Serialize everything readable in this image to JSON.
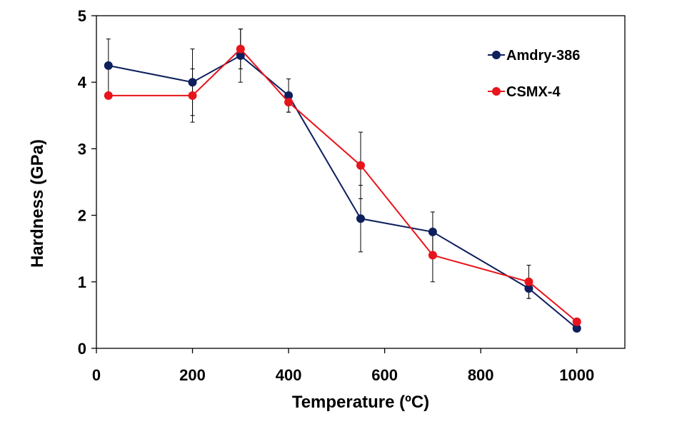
{
  "chart_data": {
    "type": "line",
    "xlabel": "Temperature (ºC)",
    "ylabel": "Hardness (GPa)",
    "xlim": [
      0,
      1100
    ],
    "ylim": [
      0,
      5
    ],
    "xticks": [
      0,
      200,
      400,
      600,
      800,
      1000
    ],
    "yticks": [
      0,
      1,
      2,
      3,
      4,
      5
    ],
    "grid": false,
    "legend_position": "top-right",
    "series": [
      {
        "name": "Amdry-386",
        "color": "#0d1f5c",
        "x": [
          25,
          200,
          300,
          400,
          550,
          700,
          900,
          1000
        ],
        "y": [
          4.25,
          4.0,
          4.4,
          3.8,
          1.95,
          1.75,
          0.9,
          0.3
        ],
        "err": [
          0.4,
          0.5,
          0.4,
          0.25,
          0.5,
          0.3,
          0.15,
          0.0
        ]
      },
      {
        "name": "CSMX-4",
        "color": "#e8141c",
        "x": [
          25,
          200,
          300,
          400,
          550,
          700,
          900,
          1000
        ],
        "y": [
          3.8,
          3.8,
          4.5,
          3.7,
          2.75,
          1.4,
          1.0,
          0.4
        ],
        "err": [
          0.0,
          0.4,
          0.3,
          0.15,
          0.5,
          0.4,
          0.25,
          0.0
        ]
      }
    ]
  }
}
